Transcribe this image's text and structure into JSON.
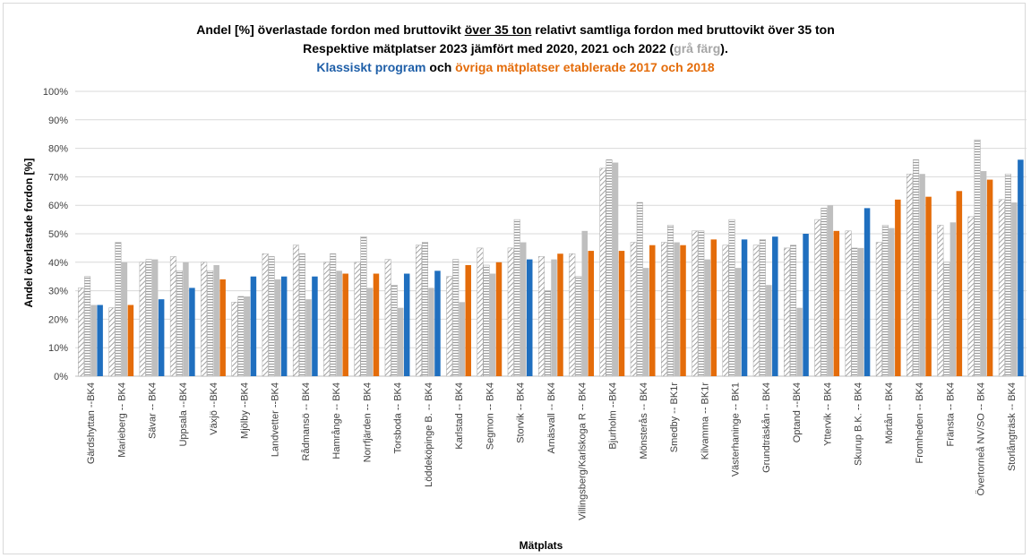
{
  "chart_data": {
    "type": "bar",
    "title": {
      "line1_a": "Andel [%] överlastade fordon med bruttovikt ",
      "line1_b": "över 35 ton",
      "line1_c": " relativt samtliga fordon med bruttovikt över 35 ton",
      "line2_a": "Respektive mätplatser 2023 jämfört med 2020, 2021 och 2022  (",
      "line2_b": "grå färg",
      "line2_c": ").",
      "line3_a": "Klassiskt program",
      "line3_b": " och ",
      "line3_c": "övriga mätplatser etablerade 2017 och 2018"
    },
    "xlabel": "Mätplats",
    "ylabel": "Andel överlastade fordon [%]",
    "ylim": [
      0,
      100
    ],
    "yticks": [
      "0%",
      "10%",
      "20%",
      "30%",
      "40%",
      "50%",
      "60%",
      "70%",
      "80%",
      "90%",
      "100%"
    ],
    "grid": true,
    "colors": {
      "klassiskt": "#1f6fbf",
      "ovriga": "#e46c0a",
      "gray_hatch": "#a6a6a6",
      "gray_solid": "#bfbfbf"
    },
    "series_keys": [
      "2020",
      "2021",
      "2022",
      "2023"
    ],
    "categories": [
      {
        "label": "Gärdshyttan --BK4",
        "values": [
          31,
          35,
          25,
          25
        ],
        "group": "klassiskt"
      },
      {
        "label": "Marieberg -- BK4",
        "values": [
          24,
          47,
          40,
          25
        ],
        "group": "ovriga"
      },
      {
        "label": "Sävar -- BK4",
        "values": [
          40,
          41,
          41,
          27
        ],
        "group": "klassiskt"
      },
      {
        "label": "Uppsala --BK4",
        "values": [
          42,
          37,
          40,
          31
        ],
        "group": "klassiskt"
      },
      {
        "label": "Växjö --BK4",
        "values": [
          40,
          37,
          39,
          34
        ],
        "group": "ovriga"
      },
      {
        "label": "Mjölby --BK4",
        "values": [
          26,
          28,
          28,
          35
        ],
        "group": "klassiskt"
      },
      {
        "label": "Landvetter --BK4",
        "values": [
          43,
          42,
          34,
          35
        ],
        "group": "klassiskt"
      },
      {
        "label": "Rådmansö -- BK4",
        "values": [
          46,
          43,
          27,
          35
        ],
        "group": "klassiskt"
      },
      {
        "label": "Hamrånge -- BK4",
        "values": [
          40,
          43,
          37,
          36
        ],
        "group": "ovriga"
      },
      {
        "label": "Norrfjärden -- BK4",
        "values": [
          40,
          49,
          31,
          36
        ],
        "group": "ovriga"
      },
      {
        "label": "Torsboda -- BK4",
        "values": [
          41,
          32,
          24,
          36
        ],
        "group": "klassiskt"
      },
      {
        "label": "Löddeköpinge B. -- BK4",
        "values": [
          46,
          47,
          31,
          37
        ],
        "group": "klassiskt"
      },
      {
        "label": "Karlstad -- BK4",
        "values": [
          35,
          41,
          26,
          39
        ],
        "group": "ovriga"
      },
      {
        "label": "Segmon -- BK4",
        "values": [
          45,
          39,
          36,
          40
        ],
        "group": "ovriga"
      },
      {
        "label": "Storvik -- BK4",
        "values": [
          45,
          55,
          47,
          41
        ],
        "group": "klassiskt"
      },
      {
        "label": "Arnäsvall -- BK4",
        "values": [
          42,
          30,
          41,
          43
        ],
        "group": "ovriga"
      },
      {
        "label": "Villingsberg/Karlskoga R -- BK4",
        "values": [
          43,
          35,
          51,
          44
        ],
        "group": "ovriga"
      },
      {
        "label": "Bjurholm --BK4",
        "values": [
          73,
          76,
          75,
          44
        ],
        "group": "ovriga"
      },
      {
        "label": "Mönsterås -- BK4",
        "values": [
          47,
          61,
          38,
          46
        ],
        "group": "ovriga"
      },
      {
        "label": "Smedby -- BK1r",
        "values": [
          47,
          53,
          47,
          46
        ],
        "group": "ovriga"
      },
      {
        "label": "Kilvamma -- BK1r",
        "values": [
          51,
          51,
          41,
          48
        ],
        "group": "ovriga"
      },
      {
        "label": "Västerhaninge -- BK1",
        "values": [
          46,
          55,
          38,
          48
        ],
        "group": "klassiskt"
      },
      {
        "label": "Grundträskån -- BK4",
        "values": [
          46,
          48,
          32,
          49
        ],
        "group": "klassiskt"
      },
      {
        "label": "Optand --BK4",
        "values": [
          45,
          46,
          24,
          50
        ],
        "group": "klassiskt"
      },
      {
        "label": "Yttervik -- BK4",
        "values": [
          55,
          59,
          60,
          51
        ],
        "group": "ovriga"
      },
      {
        "label": "Skurup B.K. -- BK4",
        "values": [
          51,
          45,
          45,
          59
        ],
        "group": "klassiskt"
      },
      {
        "label": "Mörtån -- BK4",
        "values": [
          47,
          53,
          52,
          62
        ],
        "group": "ovriga"
      },
      {
        "label": "Fromheden -- BK4",
        "values": [
          71,
          76,
          71,
          63
        ],
        "group": "ovriga"
      },
      {
        "label": "Fränsta -- BK4",
        "values": [
          53,
          40,
          54,
          65
        ],
        "group": "ovriga"
      },
      {
        "label": "Övertorneå NV/SO -- BK4",
        "values": [
          56,
          83,
          72,
          69
        ],
        "group": "ovriga"
      },
      {
        "label": "Storlångträsk -- BK4",
        "values": [
          62,
          71,
          61,
          76
        ],
        "group": "klassiskt"
      }
    ]
  }
}
